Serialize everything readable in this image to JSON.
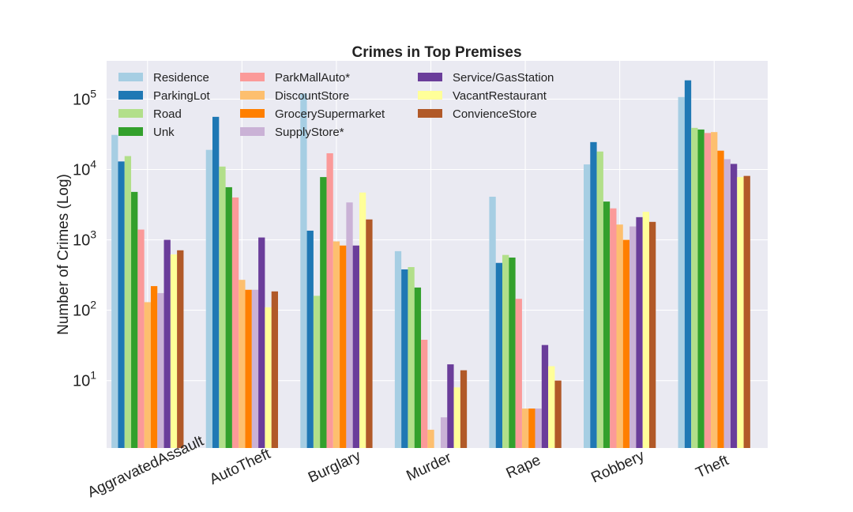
{
  "chart_data": {
    "type": "bar",
    "title": "Crimes in Top Premises",
    "xlabel": "",
    "ylabel": "Number of Crimes (Log)",
    "yscale": "log",
    "ylim": [
      1.1,
      350000
    ],
    "yticks": [
      {
        "base": "10",
        "exp": "1",
        "value": 10
      },
      {
        "base": "10",
        "exp": "2",
        "value": 100
      },
      {
        "base": "10",
        "exp": "3",
        "value": 1000
      },
      {
        "base": "10",
        "exp": "4",
        "value": 10000
      },
      {
        "base": "10",
        "exp": "5",
        "value": 100000
      }
    ],
    "grid": true,
    "legend_position": "top-left",
    "categories": [
      "AggravatedAssault",
      "AutoTheft",
      "Burglary",
      "Murder",
      "Rape",
      "Robbery",
      "Theft"
    ],
    "series": [
      {
        "name": "Residence",
        "color": "#a6cee3",
        "values": [
          31000,
          19000,
          120000,
          690,
          4100,
          11800,
          107000
        ]
      },
      {
        "name": "ParkingLot",
        "color": "#1f78b4",
        "values": [
          13000,
          56000,
          1350,
          380,
          470,
          24500,
          185000
        ]
      },
      {
        "name": "Road",
        "color": "#b2df8a",
        "values": [
          15500,
          11000,
          160,
          410,
          610,
          18000,
          39000
        ]
      },
      {
        "name": "Unk",
        "color": "#33a02c",
        "values": [
          4800,
          5600,
          7800,
          210,
          560,
          3500,
          37000
        ]
      },
      {
        "name": "ParkMallAuto*",
        "color": "#fb9a99",
        "values": [
          1400,
          4000,
          17000,
          38,
          145,
          2800,
          33000
        ]
      },
      {
        "name": "DiscountStore",
        "color": "#fdbf6f",
        "values": [
          130,
          270,
          950,
          2,
          4,
          1650,
          34000
        ]
      },
      {
        "name": "GrocerySupermarket",
        "color": "#ff7f00",
        "values": [
          220,
          195,
          830,
          0,
          4,
          1000,
          18500
        ]
      },
      {
        "name": "SupplyStore*",
        "color": "#cab2d6",
        "values": [
          175,
          195,
          3400,
          3,
          4,
          1550,
          14000
        ]
      },
      {
        "name": "Service/GasStation",
        "color": "#6a3d9a",
        "values": [
          1000,
          1080,
          830,
          17,
          32,
          2100,
          12000
        ]
      },
      {
        "name": "VacantRestaurant",
        "color": "#ffff99",
        "values": [
          620,
          110,
          4700,
          8,
          16,
          2500,
          7800
        ]
      },
      {
        "name": "ConvienceStore",
        "color": "#b15928",
        "values": [
          710,
          185,
          1950,
          14,
          10,
          1800,
          8100
        ]
      }
    ]
  }
}
